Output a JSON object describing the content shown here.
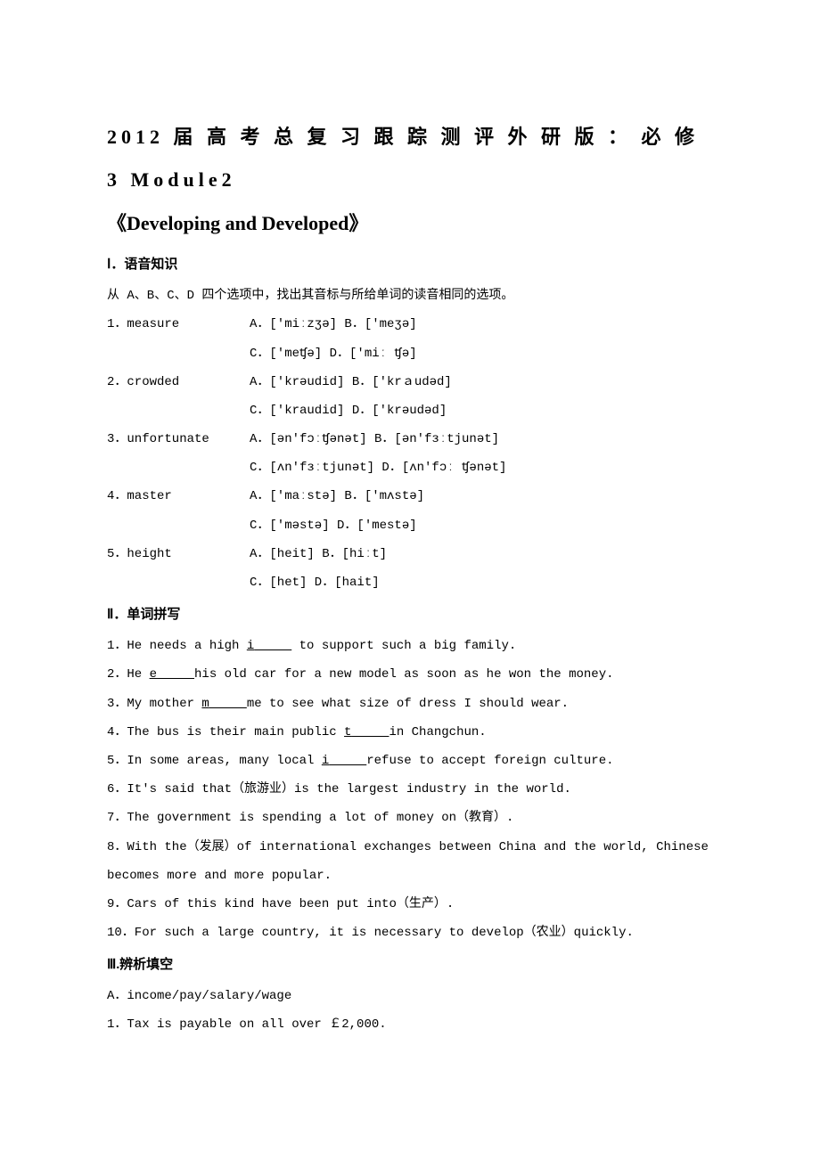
{
  "title_line1": "2012 届 高 考 总 复 习 跟 踪 测 评 外 研 版 ： 必 修 3  Module2",
  "title_line2": "《Developing and Developed》",
  "section1": {
    "header": "Ⅰ．语音知识",
    "instruction": "从 A、B、C、D 四个选项中，找出其音标与所给单词的读音相同的选项。",
    "questions": [
      {
        "num": "1．measure",
        "row1": "A．['miːzʒə]       B．['meʒə]",
        "row2": "C．['meʧə]         D．['miː ʧə]"
      },
      {
        "num": "2．crowded",
        "row1": "A．['krəudid]     B．['krａudəd]",
        "row2": "C．['kraudid]     D．['krəudəd]"
      },
      {
        "num": "3．unfortunate",
        "row1": "A．[ən'fɔːʧənət]    B．[ən'fɜːtjunət]",
        "row2": "C．[ʌn'fɜːtjunət]    D．[ʌn'fɔː ʧənət]"
      },
      {
        "num": "4．master",
        "row1": "A．['maːstə]          B．['mʌstə]",
        "row2": "C．['məstə]           D．['mestə]"
      },
      {
        "num": "5．height",
        "row1": "A．[heit]              B．[hiːt]",
        "row2": "C．[het]               D．[hait]"
      }
    ]
  },
  "section2": {
    "header": "Ⅱ．单词拼写",
    "items": [
      {
        "pre": "1．He needs a high ",
        "letter": "i",
        "blank": "　　　",
        "post": " to support such a big family."
      },
      {
        "pre": "2．He ",
        "letter": "e",
        "blank": "　　　",
        "post": "his old car for a new model as soon as he won the money."
      },
      {
        "pre": "3．My mother ",
        "letter": "m",
        "blank": "　　　",
        "post": "me to see what size of dress I should wear."
      },
      {
        "pre": "4．The bus is their main public ",
        "letter": "t",
        "blank": "　　　",
        "post": "in Changchun."
      },
      {
        "pre": "5．In some areas, many local ",
        "letter": "i",
        "blank": "　　　",
        "post": "refuse to accept foreign culture."
      },
      {
        "full": "6．It's said that（旅游业）is the largest industry in the world."
      },
      {
        "full": "7．The government is spending a lot of money on（教育）."
      },
      {
        "full": "8．With the（发展）of international exchanges between China and the world, Chinese becomes more and more popular."
      },
      {
        "full": "9．Cars of this kind have been put into（生产）."
      },
      {
        "full": "10．For such a large country, it is necessary to develop（农业）quickly."
      }
    ]
  },
  "section3": {
    "header": "Ⅲ.辨析填空",
    "a_label": "A．income/pay/salary/wage",
    "item1": "1．Tax is payable on all over ￡2,000."
  }
}
